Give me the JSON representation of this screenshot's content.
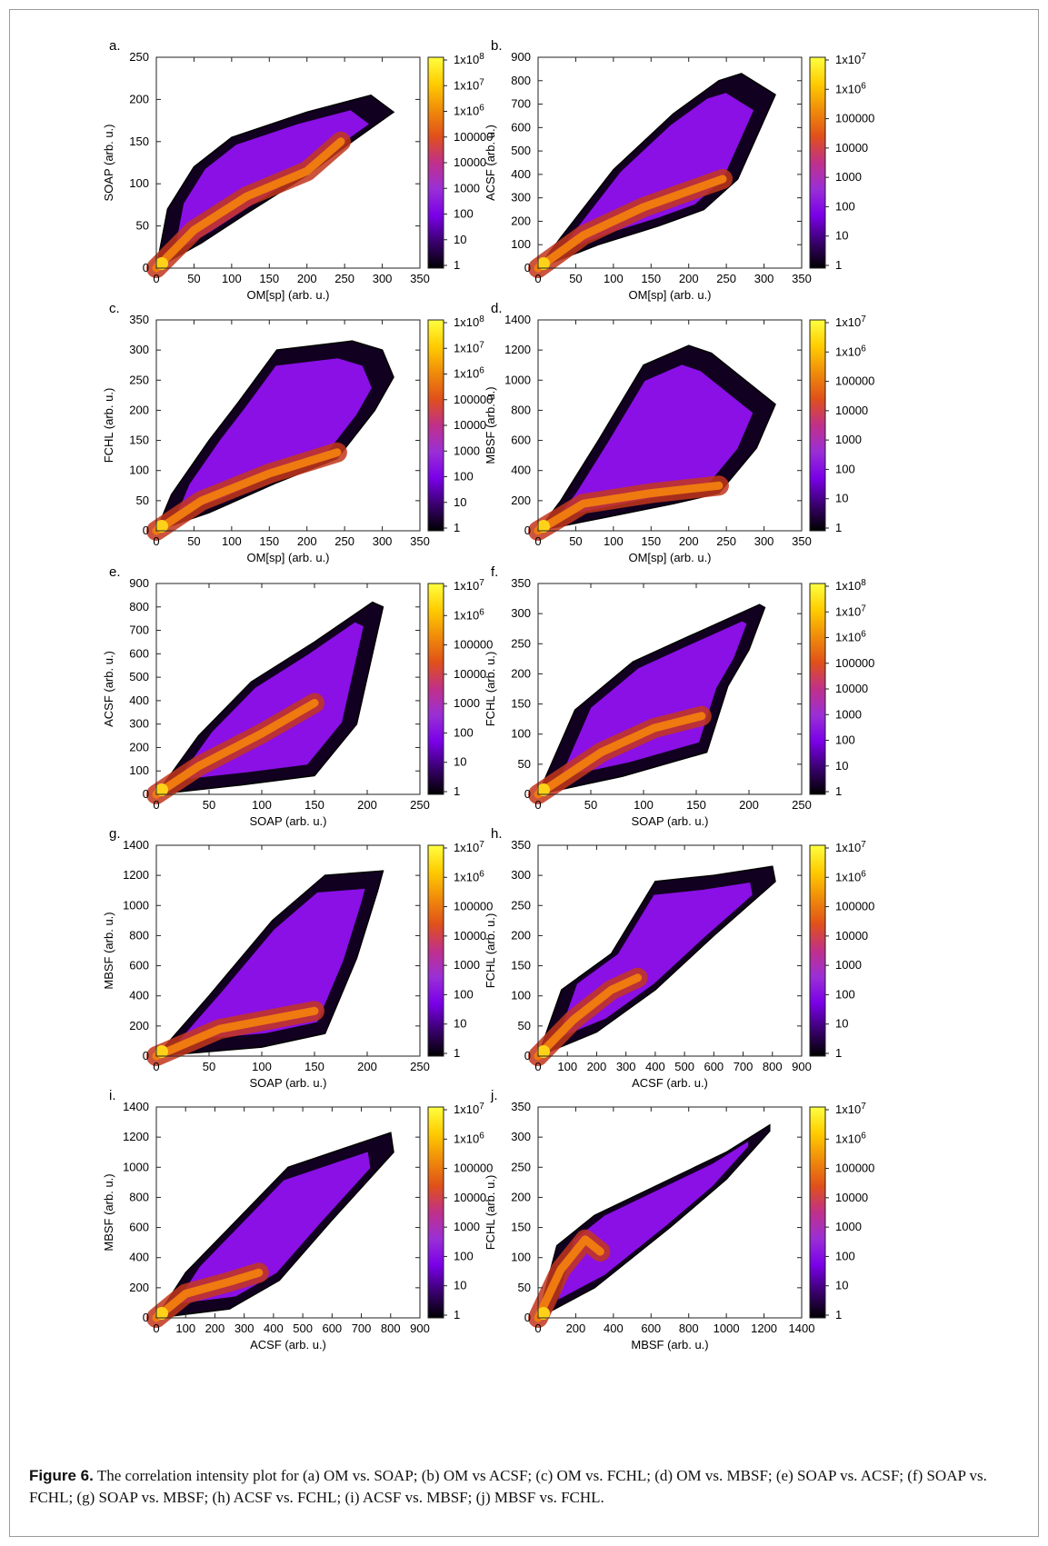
{
  "caption": {
    "label": "Figure 6.",
    "text": "The correlation intensity plot for (a) OM vs. SOAP; (b) OM vs ACSF; (c) OM vs. FCHL; (d) OM vs. MBSF; (e) SOAP vs. ACSF; (f) SOAP vs. FCHL; (g) SOAP vs. MBSF; (h) ACSF vs. FCHL; (i) ACSF vs. MBSF; (j) MBSF vs. FCHL."
  },
  "colormap": [
    "#000000",
    "#3a0070",
    "#7a00e8",
    "#9a2fd6",
    "#c0308a",
    "#e0501a",
    "#f08c0a",
    "#ffcc00",
    "#ffff40"
  ],
  "chart_data": [
    {
      "panel": "a.",
      "type": "heatmap",
      "xlabel": "OM[sp] (arb. u.)",
      "ylabel": "SOAP (arb. u.)",
      "xlim": [
        0,
        350
      ],
      "ylim": [
        0,
        250
      ],
      "xticks": [
        "0",
        "50",
        "100",
        "150",
        "200",
        "250",
        "300",
        "350"
      ],
      "yticks": [
        "0",
        "50",
        "100",
        "150",
        "200",
        "250"
      ],
      "colorbar_ticks": [
        "1",
        "10",
        "100",
        "1000",
        "10000",
        "100000",
        "1x10^6",
        "1x10^7",
        "1x10^8"
      ],
      "lower_edge": [
        [
          0,
          0
        ],
        [
          60,
          30
        ],
        [
          120,
          65
        ],
        [
          200,
          110
        ],
        [
          260,
          150
        ],
        [
          315,
          185
        ]
      ],
      "upper_edge": [
        [
          0,
          0
        ],
        [
          15,
          70
        ],
        [
          50,
          120
        ],
        [
          100,
          155
        ],
        [
          200,
          185
        ],
        [
          285,
          205
        ]
      ],
      "core": [
        [
          0,
          0
        ],
        [
          50,
          45
        ],
        [
          120,
          85
        ],
        [
          200,
          115
        ],
        [
          245,
          150
        ]
      ]
    },
    {
      "panel": "b.",
      "type": "heatmap",
      "xlabel": "OM[sp] (arb. u.)",
      "ylabel": "ACSF (arb. u.)",
      "xlim": [
        0,
        350
      ],
      "ylim": [
        0,
        900
      ],
      "xticks": [
        "0",
        "50",
        "100",
        "150",
        "200",
        "250",
        "300",
        "350"
      ],
      "yticks": [
        "0",
        "100",
        "200",
        "300",
        "400",
        "500",
        "600",
        "700",
        "800",
        "900"
      ],
      "colorbar_ticks": [
        "1",
        "10",
        "100",
        "1000",
        "10000",
        "100000",
        "1x10^6",
        "1x10^7"
      ],
      "lower_edge": [
        [
          0,
          0
        ],
        [
          80,
          100
        ],
        [
          160,
          180
        ],
        [
          220,
          250
        ],
        [
          265,
          380
        ],
        [
          315,
          740
        ]
      ],
      "upper_edge": [
        [
          0,
          0
        ],
        [
          30,
          130
        ],
        [
          100,
          420
        ],
        [
          180,
          660
        ],
        [
          240,
          800
        ],
        [
          270,
          830
        ]
      ],
      "core": [
        [
          0,
          0
        ],
        [
          60,
          140
        ],
        [
          140,
          260
        ],
        [
          245,
          380
        ]
      ]
    },
    {
      "panel": "c.",
      "type": "heatmap",
      "xlabel": "OM[sp] (arb. u.)",
      "ylabel": "FCHL (arb. u.)",
      "xlim": [
        0,
        350
      ],
      "ylim": [
        0,
        350
      ],
      "xticks": [
        "0",
        "50",
        "100",
        "150",
        "200",
        "250",
        "300",
        "350"
      ],
      "yticks": [
        "0",
        "50",
        "100",
        "150",
        "200",
        "250",
        "300",
        "350"
      ],
      "colorbar_ticks": [
        "1",
        "10",
        "100",
        "1000",
        "10000",
        "100000",
        "1x10^6",
        "1x10^7",
        "1x10^8"
      ],
      "lower_edge": [
        [
          0,
          0
        ],
        [
          70,
          30
        ],
        [
          160,
          80
        ],
        [
          240,
          120
        ],
        [
          290,
          200
        ],
        [
          315,
          255
        ]
      ],
      "upper_edge": [
        [
          0,
          0
        ],
        [
          20,
          60
        ],
        [
          70,
          150
        ],
        [
          110,
          215
        ],
        [
          160,
          300
        ],
        [
          260,
          315
        ],
        [
          300,
          300
        ]
      ],
      "core": [
        [
          0,
          0
        ],
        [
          60,
          50
        ],
        [
          150,
          95
        ],
        [
          240,
          130
        ]
      ]
    },
    {
      "panel": "d.",
      "type": "heatmap",
      "xlabel": "OM[sp] (arb. u.)",
      "ylabel": "MBSF (arb. u.)",
      "xlim": [
        0,
        350
      ],
      "ylim": [
        0,
        1400
      ],
      "xticks": [
        "0",
        "50",
        "100",
        "150",
        "200",
        "250",
        "300",
        "350"
      ],
      "yticks": [
        "0",
        "200",
        "400",
        "600",
        "800",
        "1000",
        "1200",
        "1400"
      ],
      "colorbar_ticks": [
        "1",
        "10",
        "100",
        "1000",
        "10000",
        "100000",
        "1x10^6",
        "1x10^7"
      ],
      "lower_edge": [
        [
          0,
          0
        ],
        [
          90,
          90
        ],
        [
          180,
          180
        ],
        [
          240,
          250
        ],
        [
          290,
          550
        ],
        [
          315,
          840
        ]
      ],
      "upper_edge": [
        [
          0,
          0
        ],
        [
          30,
          200
        ],
        [
          80,
          600
        ],
        [
          140,
          1100
        ],
        [
          200,
          1230
        ],
        [
          230,
          1180
        ]
      ],
      "core": [
        [
          0,
          0
        ],
        [
          60,
          180
        ],
        [
          150,
          250
        ],
        [
          240,
          300
        ]
      ]
    },
    {
      "panel": "e.",
      "type": "heatmap",
      "xlabel": "SOAP (arb. u.)",
      "ylabel": "ACSF (arb. u.)",
      "xlim": [
        0,
        250
      ],
      "ylim": [
        0,
        900
      ],
      "xticks": [
        "0",
        "50",
        "100",
        "150",
        "200",
        "250"
      ],
      "yticks": [
        "0",
        "100",
        "200",
        "300",
        "400",
        "500",
        "600",
        "700",
        "800",
        "900"
      ],
      "colorbar_ticks": [
        "1",
        "10",
        "100",
        "1000",
        "10000",
        "100000",
        "1x10^6",
        "1x10^7"
      ],
      "lower_edge": [
        [
          0,
          0
        ],
        [
          80,
          40
        ],
        [
          150,
          80
        ],
        [
          190,
          300
        ],
        [
          215,
          800
        ]
      ],
      "upper_edge": [
        [
          0,
          0
        ],
        [
          40,
          250
        ],
        [
          90,
          480
        ],
        [
          150,
          650
        ],
        [
          205,
          820
        ]
      ],
      "core": [
        [
          0,
          0
        ],
        [
          40,
          120
        ],
        [
          100,
          260
        ],
        [
          150,
          390
        ]
      ]
    },
    {
      "panel": "f.",
      "type": "heatmap",
      "xlabel": "SOAP (arb. u.)",
      "ylabel": "FCHL (arb. u.)",
      "xlim": [
        0,
        250
      ],
      "ylim": [
        0,
        350
      ],
      "xticks": [
        "0",
        "50",
        "100",
        "150",
        "200",
        "250"
      ],
      "yticks": [
        "0",
        "50",
        "100",
        "150",
        "200",
        "250",
        "300",
        "350"
      ],
      "colorbar_ticks": [
        "1",
        "10",
        "100",
        "1000",
        "10000",
        "100000",
        "1x10^6",
        "1x10^7",
        "1x10^8"
      ],
      "lower_edge": [
        [
          0,
          0
        ],
        [
          80,
          30
        ],
        [
          160,
          70
        ],
        [
          180,
          180
        ],
        [
          200,
          240
        ],
        [
          215,
          310
        ]
      ],
      "upper_edge": [
        [
          0,
          0
        ],
        [
          35,
          140
        ],
        [
          90,
          220
        ],
        [
          140,
          260
        ],
        [
          210,
          315
        ]
      ],
      "core": [
        [
          0,
          0
        ],
        [
          60,
          70
        ],
        [
          110,
          110
        ],
        [
          155,
          130
        ]
      ]
    },
    {
      "panel": "g.",
      "type": "heatmap",
      "xlabel": "SOAP (arb. u.)",
      "ylabel": "MBSF (arb. u.)",
      "xlim": [
        0,
        250
      ],
      "ylim": [
        0,
        1400
      ],
      "xticks": [
        "0",
        "50",
        "100",
        "150",
        "200",
        "250"
      ],
      "yticks": [
        "0",
        "200",
        "400",
        "600",
        "800",
        "1000",
        "1200",
        "1400"
      ],
      "colorbar_ticks": [
        "1",
        "10",
        "100",
        "1000",
        "10000",
        "100000",
        "1x10^6",
        "1x10^7"
      ],
      "lower_edge": [
        [
          0,
          0
        ],
        [
          100,
          60
        ],
        [
          160,
          150
        ],
        [
          190,
          650
        ],
        [
          210,
          1100
        ]
      ],
      "upper_edge": [
        [
          0,
          0
        ],
        [
          50,
          400
        ],
        [
          110,
          900
        ],
        [
          160,
          1200
        ],
        [
          215,
          1230
        ]
      ],
      "core": [
        [
          0,
          0
        ],
        [
          60,
          180
        ],
        [
          120,
          260
        ],
        [
          150,
          300
        ]
      ]
    },
    {
      "panel": "h.",
      "type": "heatmap",
      "xlabel": "ACSF (arb. u.)",
      "ylabel": "FCHL (arb. u.)",
      "xlim": [
        0,
        900
      ],
      "ylim": [
        0,
        350
      ],
      "xticks": [
        "0",
        "100",
        "200",
        "300",
        "400",
        "500",
        "600",
        "700",
        "800",
        "900"
      ],
      "yticks": [
        "0",
        "50",
        "100",
        "150",
        "200",
        "250",
        "300",
        "350"
      ],
      "colorbar_ticks": [
        "1",
        "10",
        "100",
        "1000",
        "10000",
        "100000",
        "1x10^6",
        "1x10^7"
      ],
      "lower_edge": [
        [
          0,
          0
        ],
        [
          200,
          40
        ],
        [
          400,
          110
        ],
        [
          600,
          200
        ],
        [
          810,
          290
        ]
      ],
      "upper_edge": [
        [
          0,
          0
        ],
        [
          80,
          110
        ],
        [
          250,
          170
        ],
        [
          400,
          290
        ],
        [
          600,
          300
        ],
        [
          800,
          315
        ]
      ],
      "core": [
        [
          0,
          0
        ],
        [
          120,
          60
        ],
        [
          250,
          110
        ],
        [
          340,
          130
        ]
      ]
    },
    {
      "panel": "i.",
      "type": "heatmap",
      "xlabel": "ACSF (arb. u.)",
      "ylabel": "MBSF (arb. u.)",
      "xlim": [
        0,
        900
      ],
      "ylim": [
        0,
        1400
      ],
      "xticks": [
        "0",
        "100",
        "200",
        "300",
        "400",
        "500",
        "600",
        "700",
        "800",
        "900"
      ],
      "yticks": [
        "0",
        "200",
        "400",
        "600",
        "800",
        "1000",
        "1200",
        "1400"
      ],
      "colorbar_ticks": [
        "1",
        "10",
        "100",
        "1000",
        "10000",
        "100000",
        "1x10^6",
        "1x10^7"
      ],
      "lower_edge": [
        [
          0,
          0
        ],
        [
          250,
          60
        ],
        [
          420,
          250
        ],
        [
          600,
          650
        ],
        [
          810,
          1100
        ]
      ],
      "upper_edge": [
        [
          0,
          0
        ],
        [
          100,
          300
        ],
        [
          250,
          600
        ],
        [
          450,
          1000
        ],
        [
          800,
          1230
        ]
      ],
      "core": [
        [
          0,
          0
        ],
        [
          100,
          160
        ],
        [
          250,
          240
        ],
        [
          350,
          300
        ]
      ]
    },
    {
      "panel": "j.",
      "type": "heatmap",
      "xlabel": "MBSF (arb. u.)",
      "ylabel": "FCHL (arb. u.)",
      "xlim": [
        0,
        1400
      ],
      "ylim": [
        0,
        350
      ],
      "xticks": [
        "0",
        "200",
        "400",
        "600",
        "800",
        "1000",
        "1200",
        "1400"
      ],
      "yticks": [
        "0",
        "50",
        "100",
        "150",
        "200",
        "250",
        "300",
        "350"
      ],
      "colorbar_ticks": [
        "1",
        "10",
        "100",
        "1000",
        "10000",
        "100000",
        "1x10^6",
        "1x10^7"
      ],
      "lower_edge": [
        [
          0,
          0
        ],
        [
          300,
          50
        ],
        [
          700,
          150
        ],
        [
          1000,
          230
        ],
        [
          1230,
          310
        ]
      ],
      "upper_edge": [
        [
          0,
          0
        ],
        [
          100,
          120
        ],
        [
          300,
          170
        ],
        [
          700,
          230
        ],
        [
          1000,
          275
        ],
        [
          1230,
          320
        ]
      ],
      "core": [
        [
          0,
          0
        ],
        [
          120,
          80
        ],
        [
          250,
          130
        ],
        [
          330,
          110
        ]
      ]
    }
  ]
}
